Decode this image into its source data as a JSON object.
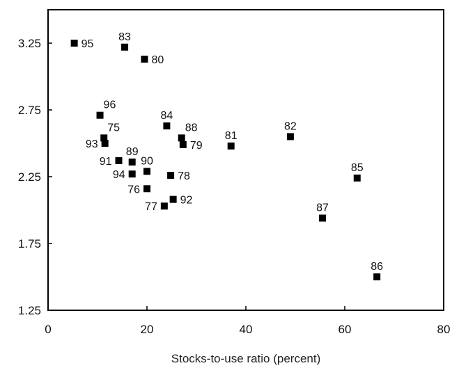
{
  "chart_data": {
    "type": "scatter",
    "title": "",
    "xlabel": "Stocks-to-use ratio (percent)",
    "ylabel": "",
    "xlim": [
      0,
      80
    ],
    "ylim": [
      1.25,
      3.5
    ],
    "xticks": [
      0,
      20,
      40,
      60,
      80
    ],
    "yticks": [
      1.25,
      1.75,
      2.25,
      2.75,
      3.25
    ],
    "xtick_labels": [
      "0",
      "20",
      "40",
      "60",
      "80"
    ],
    "ytick_labels": [
      "1.25",
      "1.75",
      "2.25",
      "2.75",
      "3.25"
    ],
    "grid": false,
    "legend": "none",
    "marker_color": "#000000",
    "points": [
      {
        "label": "95",
        "x": 5.3,
        "y": 3.25,
        "label_pos": "right"
      },
      {
        "label": "83",
        "x": 15.5,
        "y": 3.22,
        "label_pos": "above"
      },
      {
        "label": "80",
        "x": 19.5,
        "y": 3.13,
        "label_pos": "right"
      },
      {
        "label": "96",
        "x": 10.5,
        "y": 2.71,
        "label_pos": "above-right"
      },
      {
        "label": "84",
        "x": 24.0,
        "y": 2.63,
        "label_pos": "above"
      },
      {
        "label": "75",
        "x": 11.3,
        "y": 2.54,
        "label_pos": "above-right"
      },
      {
        "label": "93",
        "x": 11.5,
        "y": 2.5,
        "label_pos": "left"
      },
      {
        "label": "88",
        "x": 27.0,
        "y": 2.54,
        "label_pos": "above-right"
      },
      {
        "label": "79",
        "x": 27.3,
        "y": 2.49,
        "label_pos": "right"
      },
      {
        "label": "81",
        "x": 37.0,
        "y": 2.48,
        "label_pos": "above"
      },
      {
        "label": "82",
        "x": 49.0,
        "y": 2.55,
        "label_pos": "above"
      },
      {
        "label": "89",
        "x": 17.0,
        "y": 2.36,
        "label_pos": "above"
      },
      {
        "label": "91",
        "x": 14.3,
        "y": 2.37,
        "label_pos": "left"
      },
      {
        "label": "90",
        "x": 20.0,
        "y": 2.29,
        "label_pos": "above"
      },
      {
        "label": "94",
        "x": 17.0,
        "y": 2.27,
        "label_pos": "left"
      },
      {
        "label": "78",
        "x": 24.8,
        "y": 2.26,
        "label_pos": "right"
      },
      {
        "label": "76",
        "x": 20.0,
        "y": 2.16,
        "label_pos": "left"
      },
      {
        "label": "85",
        "x": 62.5,
        "y": 2.24,
        "label_pos": "above"
      },
      {
        "label": "92",
        "x": 25.3,
        "y": 2.08,
        "label_pos": "right"
      },
      {
        "label": "77",
        "x": 23.5,
        "y": 2.03,
        "label_pos": "left"
      },
      {
        "label": "87",
        "x": 55.5,
        "y": 1.94,
        "label_pos": "above"
      },
      {
        "label": "86",
        "x": 66.5,
        "y": 1.5,
        "label_pos": "above"
      }
    ]
  }
}
